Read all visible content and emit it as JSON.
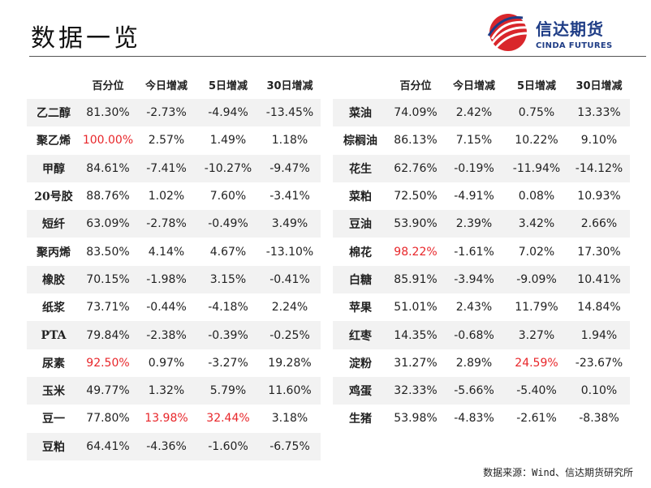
{
  "page": {
    "title": "数据一览",
    "source": "数据来源：Wind、信达期货研究所",
    "red_color": "#e8262a"
  },
  "logo": {
    "cn": "信达期货",
    "en": "CINDA FUTURES"
  },
  "table_headers": [
    "",
    "百分位",
    "今日增减",
    "5日增减",
    "30日增减"
  ],
  "left_table": [
    [
      "乙二醇",
      "81.30%",
      "-2.73%",
      "-4.94%",
      "-13.45%"
    ],
    [
      "聚乙烯",
      "100.00%",
      "2.57%",
      "1.49%",
      "1.18%"
    ],
    [
      "甲醇",
      "84.61%",
      "-7.41%",
      "-10.27%",
      "-9.47%"
    ],
    [
      "20号胶",
      "88.76%",
      "1.02%",
      "7.60%",
      "-3.41%"
    ],
    [
      "短纤",
      "63.09%",
      "-2.78%",
      "-0.49%",
      "3.49%"
    ],
    [
      "聚丙烯",
      "83.50%",
      "4.14%",
      "4.67%",
      "-13.10%"
    ],
    [
      "橡胶",
      "70.15%",
      "-1.98%",
      "3.15%",
      "-0.41%"
    ],
    [
      "纸浆",
      "73.71%",
      "-0.44%",
      "-4.18%",
      "2.24%"
    ],
    [
      "PTA",
      "79.84%",
      "-2.38%",
      "-0.39%",
      "-0.25%"
    ],
    [
      "尿素",
      "92.50%",
      "0.97%",
      "-3.27%",
      "19.28%"
    ],
    [
      "玉米",
      "49.77%",
      "1.32%",
      "5.79%",
      "11.60%"
    ],
    [
      "豆一",
      "77.80%",
      "13.98%",
      "32.44%",
      "3.18%"
    ],
    [
      "豆粕",
      "64.41%",
      "-4.36%",
      "-1.60%",
      "-6.75%"
    ]
  ],
  "left_red": [
    [
      1,
      1
    ],
    [
      9,
      1
    ],
    [
      11,
      2
    ],
    [
      11,
      3
    ]
  ],
  "right_table": [
    [
      "菜油",
      "74.09%",
      "2.42%",
      "0.75%",
      "13.33%"
    ],
    [
      "棕榈油",
      "86.13%",
      "7.15%",
      "10.22%",
      "9.10%"
    ],
    [
      "花生",
      "62.76%",
      "-0.19%",
      "-11.94%",
      "-14.12%"
    ],
    [
      "菜粕",
      "72.50%",
      "-4.91%",
      "0.08%",
      "10.93%"
    ],
    [
      "豆油",
      "53.90%",
      "2.39%",
      "3.42%",
      "2.66%"
    ],
    [
      "棉花",
      "98.22%",
      "-1.61%",
      "7.02%",
      "17.30%"
    ],
    [
      "白糖",
      "85.91%",
      "-3.94%",
      "-9.09%",
      "10.41%"
    ],
    [
      "苹果",
      "51.01%",
      "2.43%",
      "11.79%",
      "14.84%"
    ],
    [
      "红枣",
      "14.35%",
      "-0.68%",
      "3.27%",
      "1.94%"
    ],
    [
      "淀粉",
      "31.27%",
      "2.89%",
      "24.59%",
      "-23.67%"
    ],
    [
      "鸡蛋",
      "32.33%",
      "-5.66%",
      "-5.40%",
      "0.10%"
    ],
    [
      "生猪",
      "53.98%",
      "-4.83%",
      "-2.61%",
      "-8.38%"
    ]
  ],
  "right_red": [
    [
      5,
      1
    ],
    [
      9,
      3
    ]
  ]
}
